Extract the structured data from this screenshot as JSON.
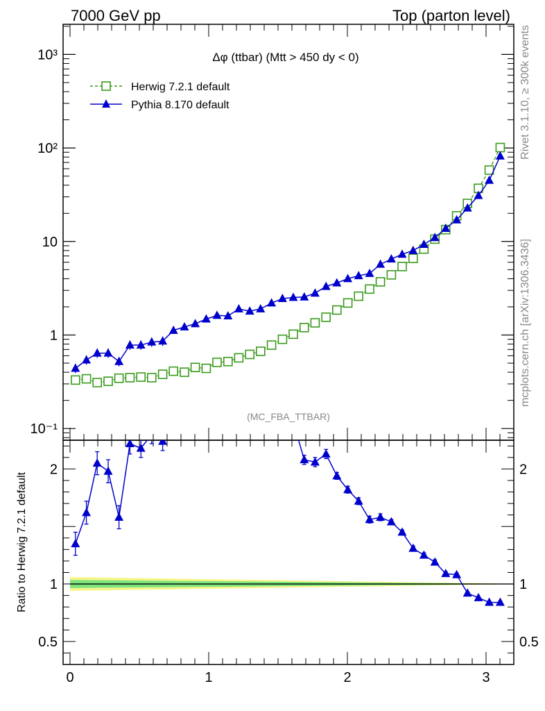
{
  "header": {
    "left": "7000 GeV pp",
    "right": "Top (parton level)"
  },
  "side_labels": {
    "rivet": "Rivet 3.1.10, ≥ 300k events",
    "mcplots": "mcplots.cern.ch [arXiv:1306.3436]"
  },
  "colors": {
    "herwig": "#3a9a1c",
    "pythia": "#0000cc",
    "band_inner": "#7de37d",
    "band_outer": "#f5f58a"
  },
  "chart_data": [
    {
      "type": "line",
      "title": "Δφ (ttbar) (Mtt > 450 dy < 0)",
      "analysis_label": "(MC_FBA_TTBAR)",
      "xlabel": "",
      "ylabel": "",
      "log_y": true,
      "xlim": [
        -0.05,
        3.2
      ],
      "ylim": [
        0.075,
        2100
      ],
      "y_ticks": [
        "10⁻¹",
        "1",
        "10",
        "10²",
        "10³"
      ],
      "legend_position": "top-left",
      "x": [
        0.039,
        0.118,
        0.196,
        0.275,
        0.353,
        0.432,
        0.511,
        0.589,
        0.668,
        0.746,
        0.825,
        0.903,
        0.982,
        1.06,
        1.139,
        1.217,
        1.296,
        1.374,
        1.453,
        1.532,
        1.61,
        1.689,
        1.767,
        1.846,
        1.924,
        2.003,
        2.081,
        2.16,
        2.238,
        2.317,
        2.395,
        2.474,
        2.552,
        2.631,
        2.709,
        2.788,
        2.866,
        2.945,
        3.023,
        3.102
      ],
      "series": [
        {
          "name": "Herwig 7.2.1 default",
          "style": "dashed, open squares",
          "values": [
            0.33,
            0.34,
            0.31,
            0.32,
            0.345,
            0.35,
            0.355,
            0.35,
            0.38,
            0.41,
            0.4,
            0.45,
            0.44,
            0.51,
            0.52,
            0.57,
            0.62,
            0.67,
            0.78,
            0.9,
            1.02,
            1.2,
            1.35,
            1.55,
            1.85,
            2.2,
            2.6,
            3.1,
            3.7,
            4.4,
            5.4,
            6.6,
            8.3,
            10.6,
            13.4,
            18.8,
            25.5,
            37,
            58,
            101
          ]
        },
        {
          "name": "Pythia 8.170 default",
          "style": "solid, filled triangles",
          "values": [
            0.44,
            0.54,
            0.64,
            0.64,
            0.52,
            0.78,
            0.78,
            0.84,
            0.86,
            1.12,
            1.22,
            1.32,
            1.48,
            1.62,
            1.6,
            1.9,
            1.8,
            1.9,
            2.2,
            2.45,
            2.52,
            2.55,
            2.8,
            3.3,
            3.6,
            4.0,
            4.3,
            4.55,
            5.7,
            6.5,
            7.3,
            8.0,
            9.3,
            11.0,
            13.8,
            17.0,
            22.8,
            31,
            45,
            82
          ]
        }
      ]
    },
    {
      "type": "line",
      "title": "",
      "xlabel": "",
      "ylabel": "Ratio to Herwig 7.2.1 default",
      "xlim": [
        -0.05,
        3.2
      ],
      "ylim": [
        0.3,
        2.25
      ],
      "x_ticks": [
        "0",
        "1",
        "2",
        "3"
      ],
      "y_ticks": [
        "0.5",
        "1",
        "2"
      ],
      "reference_line": 1,
      "series": [
        {
          "name": "Pythia 8.170 default",
          "x": [
            0.039,
            0.118,
            0.196,
            0.275,
            0.353,
            0.432,
            0.511,
            0.589,
            0.668,
            1.689,
            1.767,
            1.846,
            1.924,
            2.003,
            2.081,
            2.16,
            2.238,
            2.317,
            2.395,
            2.474,
            2.552,
            2.631,
            2.709,
            2.788,
            2.866,
            2.945,
            3.023,
            3.102
          ],
          "values": [
            1.35,
            1.62,
            2.05,
            1.98,
            1.58,
            2.22,
            2.18,
            2.3,
            2.24,
            2.08,
            2.06,
            2.13,
            1.94,
            1.82,
            1.72,
            1.56,
            1.58,
            1.54,
            1.45,
            1.31,
            1.25,
            1.19,
            1.09,
            1.08,
            0.92,
            0.88,
            0.84,
            0.84
          ],
          "errors": [
            0.1,
            0.1,
            0.1,
            0.1,
            0.1,
            0.09,
            0.08,
            0.08,
            0.08,
            0.04,
            0.04,
            0.04,
            0.03,
            0.03,
            0.03,
            0.03,
            0.03,
            0.02,
            0.02,
            0.02,
            0.02,
            0.02,
            0.015,
            0.015,
            0.01,
            0.01,
            0.01,
            0.01
          ]
        }
      ]
    }
  ]
}
